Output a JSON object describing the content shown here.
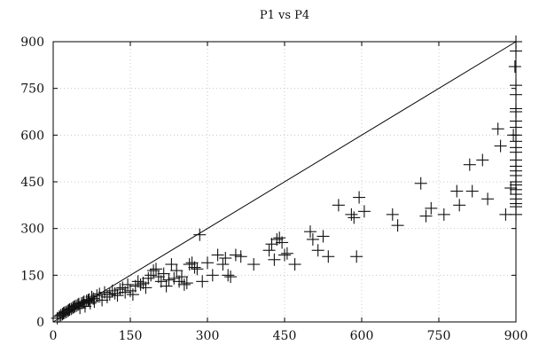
{
  "chart_data": {
    "type": "scatter",
    "title": "P1 vs P4",
    "xlabel": "",
    "ylabel": "",
    "xlim": [
      0,
      900
    ],
    "ylim": [
      0,
      900
    ],
    "xticks": [
      "0",
      "150",
      "300",
      "450",
      "600",
      "750",
      "900"
    ],
    "yticks": [
      "0",
      "150",
      "300",
      "450",
      "600",
      "750",
      "900"
    ],
    "grid": true,
    "reference_line": {
      "from": [
        0,
        0
      ],
      "to": [
        900,
        900
      ]
    },
    "points": [
      [
        8,
        12
      ],
      [
        12,
        18
      ],
      [
        15,
        22
      ],
      [
        18,
        25
      ],
      [
        20,
        28
      ],
      [
        22,
        30
      ],
      [
        25,
        32
      ],
      [
        28,
        35
      ],
      [
        30,
        38
      ],
      [
        32,
        40
      ],
      [
        35,
        42
      ],
      [
        38,
        45
      ],
      [
        40,
        48
      ],
      [
        42,
        50
      ],
      [
        45,
        52
      ],
      [
        48,
        55
      ],
      [
        50,
        58
      ],
      [
        52,
        45
      ],
      [
        55,
        60
      ],
      [
        58,
        62
      ],
      [
        60,
        65
      ],
      [
        62,
        50
      ],
      [
        65,
        68
      ],
      [
        68,
        70
      ],
      [
        70,
        72
      ],
      [
        72,
        60
      ],
      [
        75,
        80
      ],
      [
        78,
        75
      ],
      [
        80,
        65
      ],
      [
        85,
        85
      ],
      [
        90,
        90
      ],
      [
        95,
        70
      ],
      [
        100,
        95
      ],
      [
        105,
        80
      ],
      [
        110,
        88
      ],
      [
        115,
        100
      ],
      [
        120,
        92
      ],
      [
        125,
        85
      ],
      [
        130,
        105
      ],
      [
        135,
        110
      ],
      [
        140,
        95
      ],
      [
        145,
        120
      ],
      [
        150,
        100
      ],
      [
        155,
        88
      ],
      [
        160,
        115
      ],
      [
        165,
        130
      ],
      [
        170,
        120
      ],
      [
        175,
        125
      ],
      [
        180,
        110
      ],
      [
        185,
        140
      ],
      [
        190,
        150
      ],
      [
        195,
        165
      ],
      [
        200,
        170
      ],
      [
        205,
        145
      ],
      [
        210,
        130
      ],
      [
        215,
        155
      ],
      [
        220,
        115
      ],
      [
        225,
        135
      ],
      [
        230,
        185
      ],
      [
        235,
        140
      ],
      [
        240,
        165
      ],
      [
        245,
        130
      ],
      [
        250,
        145
      ],
      [
        255,
        120
      ],
      [
        260,
        125
      ],
      [
        265,
        185
      ],
      [
        270,
        190
      ],
      [
        275,
        175
      ],
      [
        280,
        170
      ],
      [
        285,
        280
      ],
      [
        290,
        130
      ],
      [
        300,
        190
      ],
      [
        310,
        150
      ],
      [
        320,
        215
      ],
      [
        330,
        185
      ],
      [
        335,
        205
      ],
      [
        340,
        150
      ],
      [
        345,
        145
      ],
      [
        355,
        215
      ],
      [
        365,
        210
      ],
      [
        390,
        185
      ],
      [
        420,
        230
      ],
      [
        425,
        250
      ],
      [
        430,
        200
      ],
      [
        435,
        265
      ],
      [
        440,
        270
      ],
      [
        445,
        255
      ],
      [
        450,
        215
      ],
      [
        455,
        220
      ],
      [
        470,
        185
      ],
      [
        500,
        290
      ],
      [
        505,
        265
      ],
      [
        515,
        230
      ],
      [
        525,
        275
      ],
      [
        535,
        210
      ],
      [
        555,
        375
      ],
      [
        580,
        345
      ],
      [
        585,
        335
      ],
      [
        590,
        210
      ],
      [
        595,
        400
      ],
      [
        605,
        355
      ],
      [
        660,
        345
      ],
      [
        670,
        310
      ],
      [
        715,
        445
      ],
      [
        725,
        340
      ],
      [
        735,
        365
      ],
      [
        760,
        345
      ],
      [
        785,
        420
      ],
      [
        790,
        375
      ],
      [
        810,
        505
      ],
      [
        815,
        420
      ],
      [
        835,
        520
      ],
      [
        845,
        395
      ],
      [
        865,
        620
      ],
      [
        870,
        565
      ],
      [
        880,
        345
      ],
      [
        890,
        430
      ],
      [
        895,
        600
      ],
      [
        898,
        820
      ],
      [
        900,
        900
      ],
      [
        900,
        870
      ],
      [
        900,
        760
      ],
      [
        900,
        730
      ],
      [
        900,
        685
      ],
      [
        900,
        675
      ],
      [
        900,
        645
      ],
      [
        900,
        625
      ],
      [
        900,
        600
      ],
      [
        900,
        580
      ],
      [
        900,
        560
      ],
      [
        900,
        545
      ],
      [
        900,
        520
      ],
      [
        900,
        500
      ],
      [
        900,
        485
      ],
      [
        900,
        470
      ],
      [
        900,
        450
      ],
      [
        900,
        440
      ],
      [
        900,
        425
      ],
      [
        900,
        410
      ],
      [
        900,
        395
      ],
      [
        900,
        380
      ],
      [
        900,
        370
      ],
      [
        900,
        345
      ]
    ]
  }
}
